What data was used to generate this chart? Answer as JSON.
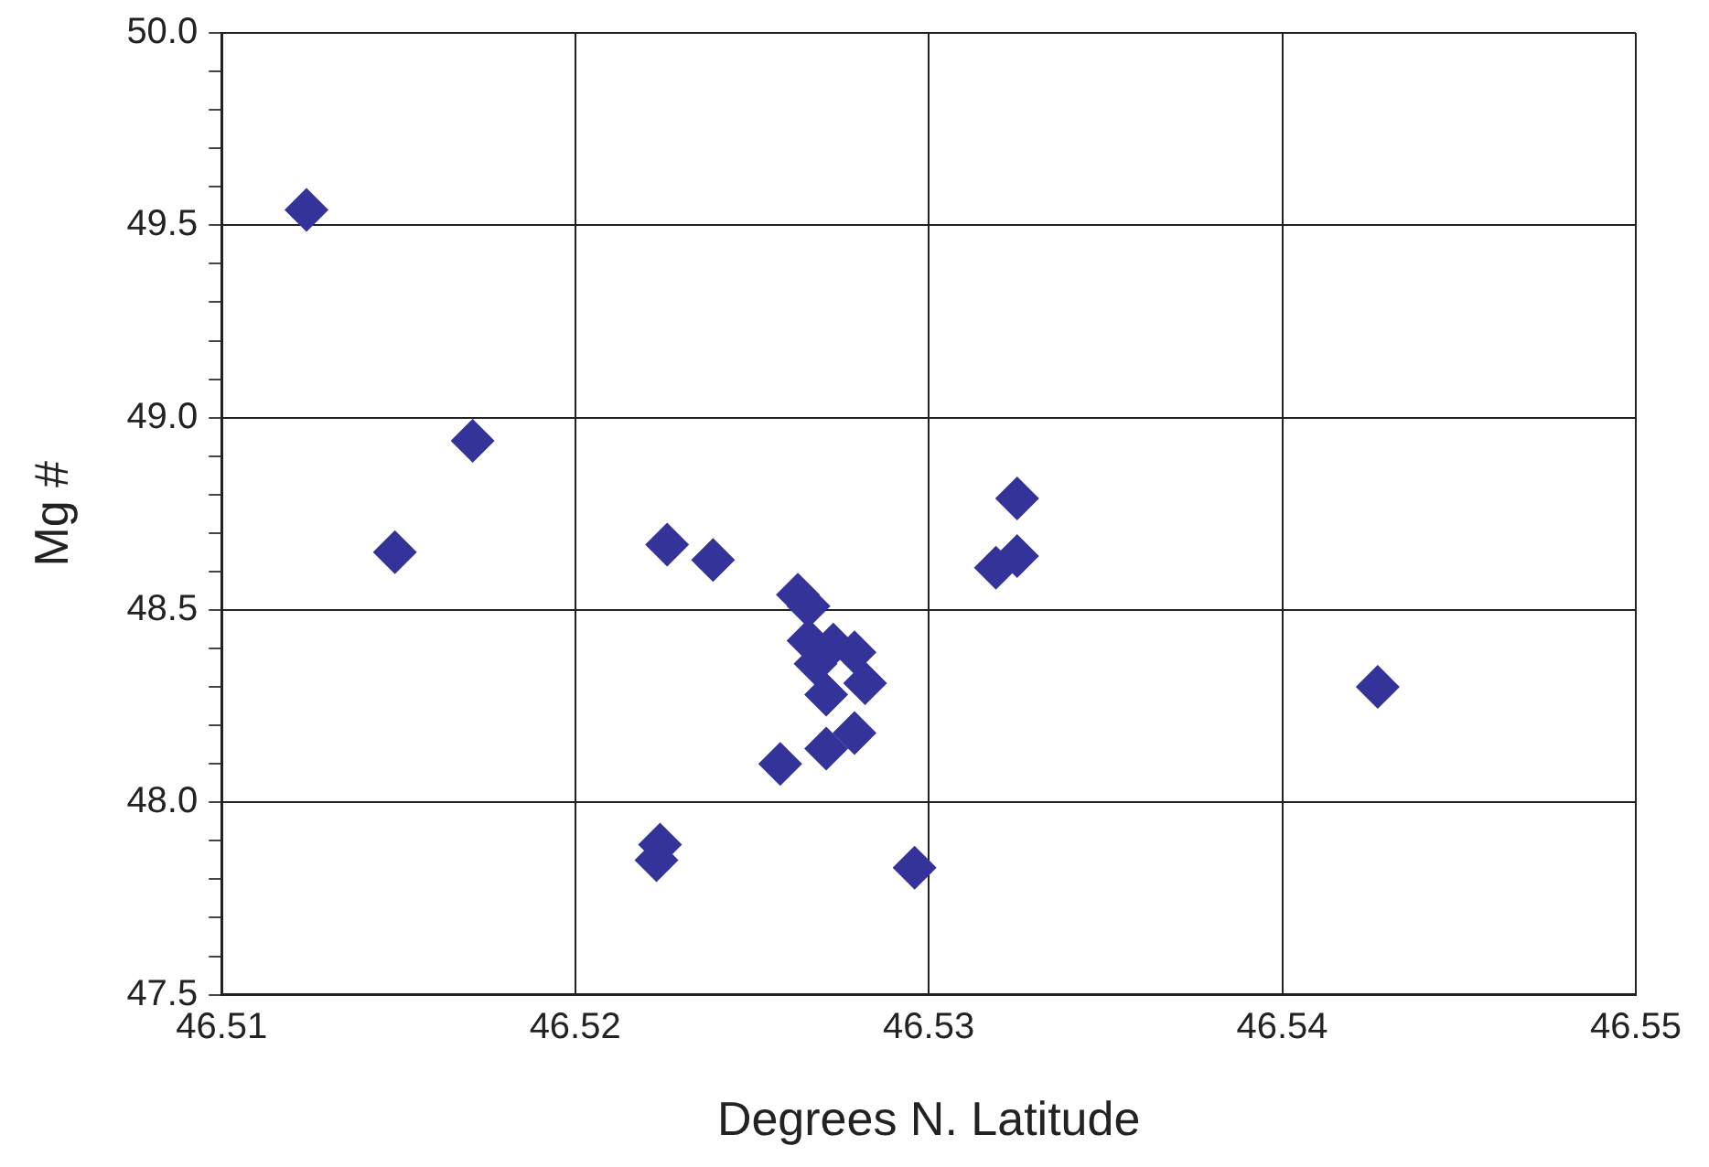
{
  "chart_data": {
    "type": "scatter",
    "xlabel": "Degrees N. Latitude",
    "ylabel": "Mg #",
    "series": [
      {
        "color": "#333399",
        "x": [
          46.5124,
          46.5149,
          46.5171,
          46.5226,
          46.5239,
          46.5223,
          46.5224,
          46.5258,
          46.5296,
          46.5427,
          46.5319,
          46.5325,
          46.5325,
          46.5263,
          46.5266,
          46.5266,
          46.5273,
          46.5279,
          46.5268,
          46.5282,
          46.5271,
          46.5271,
          46.5279
        ],
        "values": [
          49.54,
          48.65,
          48.94,
          48.67,
          48.63,
          47.85,
          47.89,
          48.1,
          47.83,
          48.3,
          48.61,
          48.64,
          48.79,
          48.54,
          48.51,
          48.42,
          48.41,
          48.39,
          48.36,
          48.31,
          48.28,
          48.14,
          48.18
        ]
      }
    ],
    "xlim": [
      46.51,
      46.55
    ],
    "xticks": [
      46.51,
      46.52,
      46.53,
      46.54,
      46.55
    ],
    "ylim": [
      47.5,
      50
    ],
    "yticks": [
      47.5,
      {
        "value": 47.6,
        "label": null
      },
      {
        "value": 47.7,
        "label": null
      },
      {
        "value": 47.8,
        "label": null
      },
      {
        "value": 47.9,
        "label": null
      },
      {
        "value": 48,
        "label": "48.0"
      },
      {
        "value": 48.1,
        "label": null
      },
      {
        "value": 48.2,
        "label": null
      },
      {
        "value": 48.3,
        "label": null
      },
      {
        "value": 48.4,
        "label": null
      },
      48.5,
      {
        "value": 48.6,
        "label": null
      },
      {
        "value": 48.7,
        "label": null
      },
      {
        "value": 48.8,
        "label": null
      },
      {
        "value": 48.9,
        "label": null
      },
      {
        "value": 49,
        "label": "49.0"
      },
      {
        "value": 49.1,
        "label": null
      },
      {
        "value": 49.2,
        "label": null
      },
      {
        "value": 49.3,
        "label": null
      },
      {
        "value": 49.4,
        "label": null
      },
      49.5,
      {
        "value": 49.6,
        "label": null
      },
      {
        "value": 49.7,
        "label": null
      },
      {
        "value": 49.8,
        "label": null
      },
      {
        "value": 49.9,
        "label": null
      },
      {
        "value": 50,
        "label": "50.0"
      }
    ],
    "grid": true,
    "marker": "diamond",
    "legend": false
  }
}
